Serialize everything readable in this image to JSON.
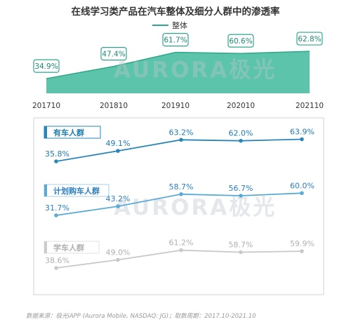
{
  "title": "在线学习类产品在汽车整体及细分人群中的渗透率",
  "legend_label": "整体",
  "watermark": "AURORA极光",
  "footer": "数据来源：极光iAPP (Aurora Mobile, NASDAQ: JG)；取数周期：2017.10-2021.10",
  "colors": {
    "overall_area": "#5cc4aa",
    "overall_line": "#2ea68a",
    "segment_text": "#1d7bb0",
    "segment_label_bg": "#2a86b8",
    "segment_line_blue": "#2a86b8",
    "segment_line_light": "#5aaad6",
    "segment_line_gray": "#c9c9c9",
    "panel_border": "#d9d9d9"
  },
  "chart_data": [
    {
      "type": "area",
      "name": "整体",
      "categories": [
        "201710",
        "201810",
        "201910",
        "202010",
        "202110"
      ],
      "values": [
        34.9,
        47.4,
        61.7,
        60.6,
        62.8
      ],
      "value_labels": [
        "34.9%",
        "47.4%",
        "61.7%",
        "60.6%",
        "62.8%"
      ]
    },
    {
      "type": "line",
      "segments": [
        {
          "name": "有车人群",
          "values": [
            35.8,
            49.1,
            63.2,
            62.0,
            63.9
          ],
          "value_labels": [
            "35.8%",
            "49.1%",
            "63.2%",
            "62.0%",
            "63.9%"
          ]
        },
        {
          "name": "计划购车人群",
          "values": [
            31.7,
            43.2,
            58.7,
            56.7,
            60.0
          ],
          "value_labels": [
            "31.7%",
            "43.2%",
            "58.7%",
            "56.7%",
            "60.0%"
          ]
        },
        {
          "name": "学车人群",
          "values": [
            38.6,
            49.0,
            61.2,
            58.7,
            59.9
          ],
          "value_labels": [
            "38.6%",
            "49.0%",
            "61.2%",
            "58.7%",
            "59.9%"
          ]
        }
      ]
    }
  ]
}
